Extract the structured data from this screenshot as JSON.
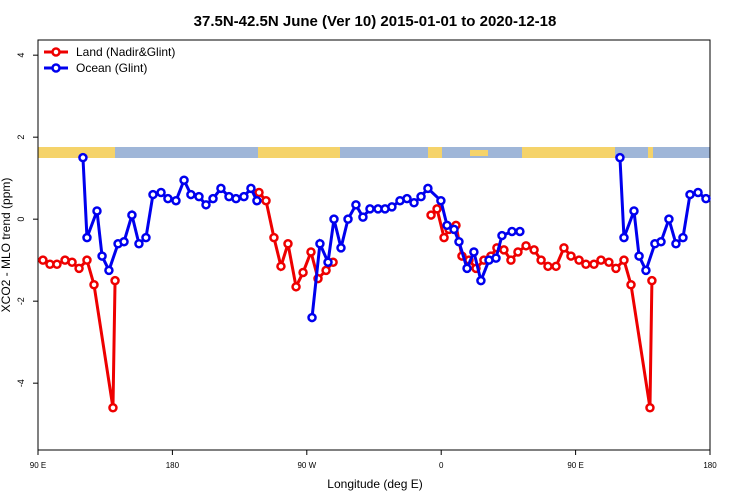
{
  "chart_data": {
    "type": "line",
    "title": "37.5N-42.5N June (Ver 10)   2015-01-01 to 2020-12-18",
    "x_label": "Longitude (deg E)",
    "y_label": "XCO2 - MLO trend (ppm)",
    "xlim": [
      90,
      540
    ],
    "ylim": [
      -5.63,
      4.37
    ],
    "xticks": [
      {
        "value": 90,
        "label": "90 E"
      },
      {
        "value": 180,
        "label": "180"
      },
      {
        "value": 270,
        "label": "90 W"
      },
      {
        "value": 360,
        "label": "0"
      },
      {
        "value": 450,
        "label": "90 E"
      },
      {
        "value": 540,
        "label": "180"
      }
    ],
    "yticks": [
      -4,
      -2,
      0,
      2,
      4
    ],
    "legend": "top-left",
    "series": [
      {
        "name": "Land (Nadir&Glint)",
        "color": "#ee0000",
        "x": [
          93.3,
          98.0,
          102.7,
          108.1,
          112.8,
          117.5,
          122.8,
          127.5,
          140.2,
          141.6,
          null,
          238.0,
          242.7,
          248.0,
          252.7,
          257.4,
          262.8,
          267.5,
          272.8,
          277.5,
          282.9,
          287.6,
          null,
          353.2,
          357.2,
          361.9,
          365.2,
          369.9,
          373.9,
          378.6,
          383.3,
          388.6,
          393.3,
          397.3,
          402.0,
          406.7,
          411.4,
          416.8,
          422.2,
          426.9,
          431.5,
          436.9,
          442.2,
          446.9,
          452.3,
          456.9,
          462.3,
          467.0,
          472.3,
          477.0,
          482.4,
          487.1,
          499.8,
          501.1
        ],
        "values": [
          -1.0,
          -1.1,
          -1.1,
          -1.0,
          -1.05,
          -1.2,
          -1.0,
          -1.6,
          -4.6,
          -1.5,
          null,
          0.65,
          0.45,
          -0.45,
          -1.15,
          -0.6,
          -1.65,
          -1.3,
          -0.8,
          -1.45,
          -1.25,
          -1.05,
          null,
          0.1,
          0.25,
          -0.45,
          -0.25,
          -0.15,
          -0.9,
          -1.0,
          -1.2,
          -1.0,
          -0.9,
          -0.7,
          -0.75,
          -1.0,
          -0.8,
          -0.65,
          -0.75,
          -1.0,
          -1.15,
          -1.15,
          -0.7,
          -0.9,
          -1.0,
          -1.1,
          -1.1,
          -1.0,
          -1.05,
          -1.2,
          -1.0,
          -1.6,
          -4.6,
          -1.5
        ]
      },
      {
        "name": "Ocean (Glint)",
        "color": "#0000ee",
        "x": [
          120.1,
          122.8,
          129.5,
          132.9,
          137.5,
          143.6,
          147.6,
          152.9,
          157.6,
          162.3,
          167.0,
          172.4,
          177.0,
          182.4,
          187.8,
          192.4,
          197.8,
          202.5,
          207.2,
          212.5,
          217.9,
          222.6,
          227.9,
          232.6,
          236.6,
          null,
          273.5,
          278.8,
          284.2,
          288.2,
          292.9,
          297.6,
          302.9,
          307.6,
          312.3,
          317.7,
          322.4,
          327.0,
          332.4,
          337.1,
          341.8,
          346.5,
          351.1,
          359.8,
          363.9,
          368.6,
          371.9,
          377.3,
          381.9,
          386.6,
          392.0,
          396.7,
          400.7,
          407.4,
          412.7,
          null,
          479.7,
          482.4,
          489.1,
          492.5,
          497.1,
          503.1,
          507.2,
          512.5,
          517.2,
          521.9,
          526.6,
          532.0,
          537.3
        ],
        "values": [
          1.5,
          -0.45,
          0.2,
          -0.9,
          -1.25,
          -0.6,
          -0.55,
          0.1,
          -0.6,
          -0.45,
          0.6,
          0.65,
          0.5,
          0.45,
          0.95,
          0.6,
          0.55,
          0.35,
          0.5,
          0.75,
          0.55,
          0.5,
          0.55,
          0.75,
          0.45,
          null,
          -2.4,
          -0.6,
          -1.05,
          0.0,
          -0.7,
          0.0,
          0.35,
          0.05,
          0.25,
          0.25,
          0.25,
          0.3,
          0.45,
          0.5,
          0.4,
          0.55,
          0.75,
          0.45,
          -0.15,
          -0.25,
          -0.55,
          -1.2,
          -0.8,
          -1.5,
          -1.0,
          -0.95,
          -0.4,
          -0.3,
          -0.3,
          null,
          1.5,
          -0.45,
          0.2,
          -0.9,
          -1.25,
          -0.6,
          -0.55,
          0.0,
          -0.6,
          -0.45,
          0.6,
          0.65,
          0.5
        ]
      }
    ]
  }
}
